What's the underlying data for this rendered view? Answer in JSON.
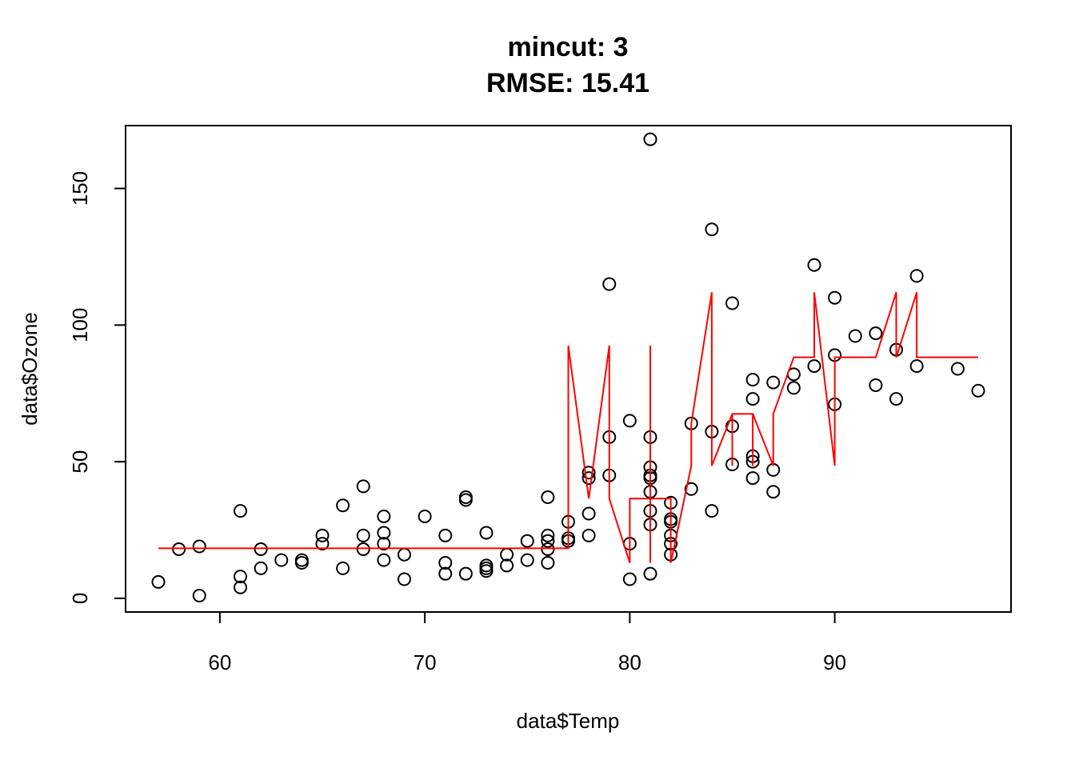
{
  "chart_data": {
    "type": "scatter",
    "title": "mincut: 3",
    "subtitle": "RMSE: 15.41",
    "xlabel": "data$Temp",
    "ylabel": "data$Ozone",
    "xlim": [
      55.4,
      98.6
    ],
    "ylim": [
      -5.0,
      173.0
    ],
    "xticks": [
      "60",
      "70",
      "80",
      "90"
    ],
    "xtick_values": [
      60,
      70,
      80,
      90
    ],
    "yticks": [
      "0",
      "50",
      "100",
      "150"
    ],
    "ytick_values": [
      0,
      50,
      100,
      150
    ],
    "grid": false,
    "point_color": "#000000",
    "line_color": "#ff0000",
    "points": [
      [
        57,
        6
      ],
      [
        58,
        18
      ],
      [
        59,
        19
      ],
      [
        59,
        1
      ],
      [
        61,
        32
      ],
      [
        61,
        8
      ],
      [
        61,
        4
      ],
      [
        62,
        18
      ],
      [
        62,
        11
      ],
      [
        63,
        14
      ],
      [
        64,
        14
      ],
      [
        64,
        13
      ],
      [
        65,
        23
      ],
      [
        65,
        20
      ],
      [
        66,
        34
      ],
      [
        66,
        11
      ],
      [
        67,
        41
      ],
      [
        67,
        23
      ],
      [
        67,
        18
      ],
      [
        68,
        30
      ],
      [
        68,
        24
      ],
      [
        68,
        20
      ],
      [
        68,
        14
      ],
      [
        69,
        16
      ],
      [
        69,
        7
      ],
      [
        70,
        30
      ],
      [
        71,
        23
      ],
      [
        71,
        13
      ],
      [
        71,
        9
      ],
      [
        72,
        37
      ],
      [
        72,
        36
      ],
      [
        72,
        9
      ],
      [
        73,
        24
      ],
      [
        73,
        12
      ],
      [
        73,
        11
      ],
      [
        73,
        10
      ],
      [
        74,
        16
      ],
      [
        74,
        12
      ],
      [
        75,
        21
      ],
      [
        75,
        14
      ],
      [
        76,
        37
      ],
      [
        76,
        23
      ],
      [
        76,
        21
      ],
      [
        76,
        18
      ],
      [
        76,
        13
      ],
      [
        77,
        28
      ],
      [
        77,
        22
      ],
      [
        77,
        21
      ],
      [
        78,
        46
      ],
      [
        78,
        44
      ],
      [
        78,
        31
      ],
      [
        78,
        23
      ],
      [
        79,
        115
      ],
      [
        79,
        59
      ],
      [
        79,
        45
      ],
      [
        80,
        65
      ],
      [
        80,
        20
      ],
      [
        80,
        7
      ],
      [
        81,
        168
      ],
      [
        81,
        59
      ],
      [
        81,
        48
      ],
      [
        81,
        45
      ],
      [
        81,
        44
      ],
      [
        81,
        39
      ],
      [
        81,
        32
      ],
      [
        81,
        27
      ],
      [
        81,
        9
      ],
      [
        82,
        35
      ],
      [
        82,
        29
      ],
      [
        82,
        28
      ],
      [
        82,
        23
      ],
      [
        82,
        20
      ],
      [
        82,
        16
      ],
      [
        83,
        64
      ],
      [
        83,
        40
      ],
      [
        84,
        135
      ],
      [
        84,
        61
      ],
      [
        84,
        32
      ],
      [
        85,
        108
      ],
      [
        85,
        63
      ],
      [
        85,
        49
      ],
      [
        86,
        80
      ],
      [
        86,
        73
      ],
      [
        86,
        52
      ],
      [
        86,
        50
      ],
      [
        86,
        44
      ],
      [
        87,
        79
      ],
      [
        87,
        47
      ],
      [
        87,
        39
      ],
      [
        88,
        82
      ],
      [
        88,
        77
      ],
      [
        89,
        122
      ],
      [
        89,
        85
      ],
      [
        90,
        110
      ],
      [
        90,
        89
      ],
      [
        90,
        71
      ],
      [
        91,
        96
      ],
      [
        92,
        97
      ],
      [
        92,
        78
      ],
      [
        93,
        91
      ],
      [
        93,
        73
      ],
      [
        94,
        118
      ],
      [
        94,
        85
      ],
      [
        96,
        84
      ],
      [
        97,
        76
      ]
    ],
    "fitted_line": [
      [
        57,
        18.3
      ],
      [
        77,
        18.3
      ],
      [
        77,
        92.5
      ],
      [
        78,
        36.5
      ],
      [
        79,
        92.5
      ],
      [
        79,
        36.5
      ],
      [
        80,
        13
      ],
      [
        80,
        36.5
      ],
      [
        81,
        36.5
      ],
      [
        81,
        92.5
      ],
      [
        81,
        13
      ],
      [
        81,
        36.5
      ],
      [
        82,
        36.5
      ],
      [
        82,
        13
      ],
      [
        83,
        48.5
      ],
      [
        83,
        64
      ],
      [
        84,
        112
      ],
      [
        84,
        48.5
      ],
      [
        85,
        67.5
      ],
      [
        85,
        48.5
      ],
      [
        85,
        67.5
      ],
      [
        86,
        67.5
      ],
      [
        86,
        48.5
      ],
      [
        86,
        67.5
      ],
      [
        87,
        48.5
      ],
      [
        87,
        67.5
      ],
      [
        88,
        88.2
      ],
      [
        89,
        88.2
      ],
      [
        89,
        112
      ],
      [
        90,
        48.5
      ],
      [
        90,
        88.2
      ],
      [
        92,
        88.2
      ],
      [
        93,
        112
      ],
      [
        93,
        88.2
      ],
      [
        94,
        112
      ],
      [
        94,
        88.2
      ],
      [
        97,
        88.2
      ]
    ]
  }
}
